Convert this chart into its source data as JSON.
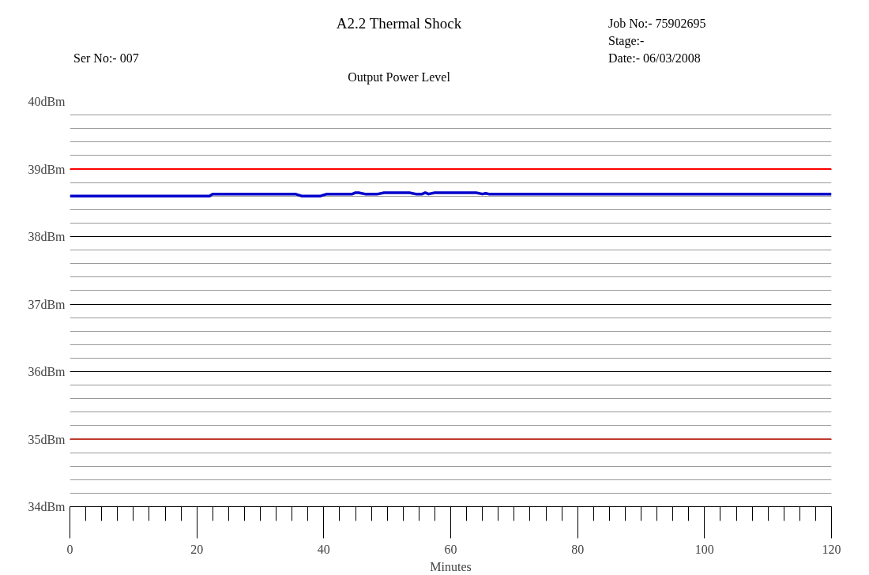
{
  "chart_data": {
    "type": "line",
    "title": "A2.2 Thermal Shock",
    "subtitle": "Output Power Level",
    "xlabel": "Minutes",
    "annotations": [
      "Ser No:- 007",
      "Job No:- 75902695",
      "Stage:-",
      "Date:-    06/03/2008"
    ],
    "x": [
      0,
      22,
      22.5,
      35.5,
      36.5,
      39.5,
      40.5,
      44.5,
      45,
      45.5,
      46.5,
      48.5,
      49.5,
      53.5,
      54.5,
      55.5,
      56,
      56.5,
      57.5,
      64,
      65,
      65.5,
      66,
      120
    ],
    "series": [
      {
        "color": "#0000cc",
        "values": [
          38.6,
          38.6,
          38.63,
          38.63,
          38.6,
          38.6,
          38.63,
          38.63,
          38.65,
          38.65,
          38.63,
          38.63,
          38.65,
          38.65,
          38.63,
          38.63,
          38.65,
          38.63,
          38.65,
          38.65,
          38.63,
          38.64,
          38.63,
          38.63
        ]
      }
    ],
    "xlim": [
      0,
      120
    ],
    "xticks": [
      0,
      20,
      40,
      60,
      80,
      100,
      120
    ],
    "ylim": [
      34,
      40
    ],
    "yticks": [
      {
        "value": 34,
        "label": "34dBm"
      },
      {
        "value": 35,
        "label": "35dBm"
      },
      {
        "value": 36,
        "label": "36dBm"
      },
      {
        "value": 37,
        "label": "37dBm"
      },
      {
        "value": 38,
        "label": "38dBm"
      },
      {
        "value": 39,
        "label": "39dBm"
      },
      {
        "value": 40,
        "label": "40dBm"
      }
    ],
    "ref_lines": [
      {
        "axis": "y",
        "value": 39,
        "color": "#ff0000"
      },
      {
        "axis": "y",
        "value": 35,
        "color": "#c0392b"
      }
    ],
    "grid": "y",
    "marker": "none",
    "line_style": "solid"
  }
}
